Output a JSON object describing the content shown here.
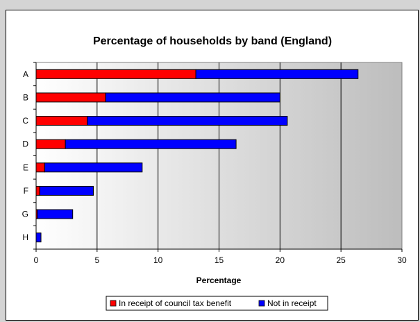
{
  "chart_data": {
    "type": "bar",
    "orientation": "horizontal",
    "stacked": true,
    "title": "Percentage of households by band (England)",
    "xlabel": "Percentage",
    "ylabel": "",
    "categories": [
      "A",
      "B",
      "C",
      "D",
      "E",
      "F",
      "G",
      "H"
    ],
    "series": [
      {
        "name": "In receipt of council tax benefit",
        "color": "#ff0000",
        "values": [
          13.1,
          5.7,
          4.2,
          2.4,
          0.7,
          0.3,
          0.1,
          0.0
        ]
      },
      {
        "name": "Not in receipt",
        "color": "#0000ff",
        "values": [
          13.3,
          14.3,
          16.4,
          14.0,
          8.0,
          4.4,
          2.9,
          0.4
        ]
      }
    ],
    "xlim": [
      0,
      30
    ],
    "xticks": [
      0,
      5,
      10,
      15,
      20,
      25,
      30
    ],
    "grid": "vertical",
    "legend_position": "bottom"
  }
}
